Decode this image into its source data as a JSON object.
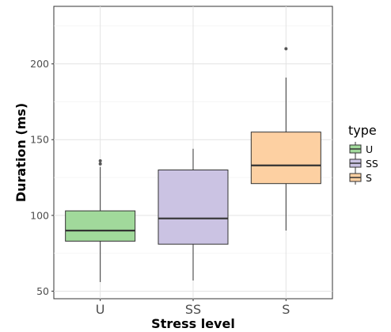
{
  "chart_data": {
    "type": "boxplot",
    "xlabel": "Stress level",
    "ylabel": "Duration (ms)",
    "ylim": [
      45,
      238
    ],
    "yticks": [
      50,
      100,
      150,
      200
    ],
    "grid": true,
    "legend": {
      "title": "type",
      "placement": "right"
    },
    "categories": [
      "U",
      "SS",
      "S"
    ],
    "series": [
      {
        "name": "U",
        "color": "#a1d99b",
        "q1": 83,
        "median": 90,
        "q3": 103,
        "whisker_low": 56,
        "whisker_high": 132,
        "outliers": [
          134,
          136
        ]
      },
      {
        "name": "SS",
        "color": "#cbc3e3",
        "q1": 81,
        "median": 98,
        "q3": 130,
        "whisker_low": 57,
        "whisker_high": 144,
        "outliers": []
      },
      {
        "name": "S",
        "color": "#fdd0a2",
        "q1": 121,
        "median": 133,
        "q3": 155,
        "whisker_low": 90,
        "whisker_high": 191,
        "outliers": [
          210
        ]
      }
    ]
  }
}
